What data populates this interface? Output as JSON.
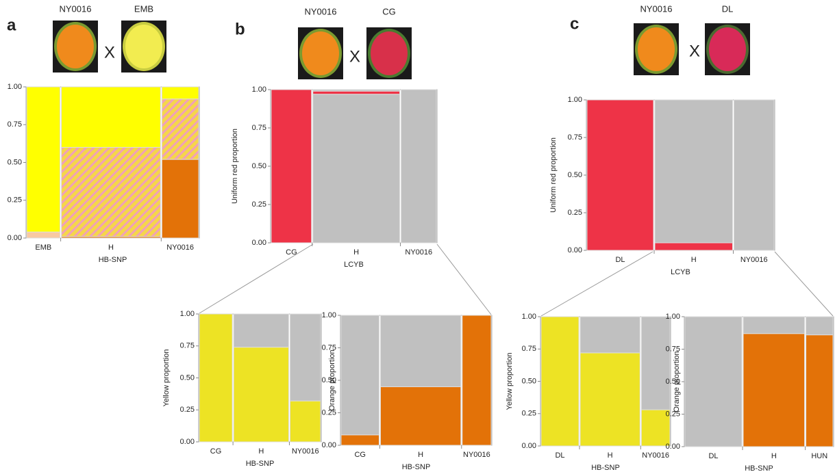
{
  "panels": [
    {
      "letter": "a",
      "parents": [
        "NY0016",
        "EMB"
      ],
      "cross": "X"
    },
    {
      "letter": "b",
      "parents": [
        "NY0016",
        "CG"
      ],
      "cross": "X"
    },
    {
      "letter": "c",
      "parents": [
        "NY0016",
        "DL"
      ],
      "cross": "X"
    }
  ],
  "chart_data": [
    {
      "type": "mosaic",
      "xlabel": "HB-SNP",
      "categories": [
        "EMB",
        "H",
        "NY0016"
      ],
      "widths": [
        0.2,
        0.58,
        0.22
      ],
      "series": [
        {
          "color": "#f8c9a2",
          "values": [
            0.04,
            null,
            null
          ]
        },
        {
          "color": "#e37208",
          "values": [
            null,
            0.01,
            0.52
          ]
        },
        {
          "color": "#f5d64a",
          "hatch": "#f0a0b8",
          "values": [
            null,
            0.59,
            0.4
          ]
        },
        {
          "color": "#ffff00",
          "values": [
            0.96,
            0.4,
            0.08
          ]
        }
      ],
      "ylim": [
        0,
        1
      ],
      "yticks": [
        {
          "value": 0,
          "label": "0.00"
        },
        {
          "value": 0.25,
          "label": "0.25"
        },
        {
          "value": 0.5,
          "label": "0.50"
        },
        {
          "value": 0.75,
          "label": "0.75"
        },
        {
          "value": 1,
          "label": "1.00"
        }
      ]
    },
    {
      "type": "mosaic",
      "xlabel": "LCYB",
      "ylabel": "Uniform red proportion",
      "categories": [
        "CG",
        "H",
        "NY0016"
      ],
      "widths": [
        0.25,
        0.53,
        0.22
      ],
      "series": [
        {
          "color": "#ee3347",
          "values": [
            1,
            null,
            null
          ]
        },
        {
          "color": "#c0c0c0",
          "values": [
            null,
            0.97,
            1
          ]
        },
        {
          "color": "#ee3347",
          "values": [
            null,
            0.02,
            null
          ]
        },
        {
          "color": "#c0c0c0",
          "values": [
            null,
            0.01,
            null
          ]
        }
      ],
      "ylim": [
        0,
        1
      ],
      "yticks": [
        {
          "value": 0,
          "label": "0.00"
        },
        {
          "value": 0.25,
          "label": "0.25"
        },
        {
          "value": 0.5,
          "label": "0.50"
        },
        {
          "value": 0.75,
          "label": "0.75"
        },
        {
          "value": 1,
          "label": "1.00"
        }
      ]
    },
    {
      "type": "mosaic",
      "xlabel": "HB-SNP",
      "ylabel": "Yellow proportion",
      "categories": [
        "CG",
        "H",
        "NY0016"
      ],
      "widths": [
        0.28,
        0.46,
        0.26
      ],
      "series": [
        {
          "color": "#ede324",
          "values": [
            1,
            0.74,
            0.32
          ]
        },
        {
          "color": "#c0c0c0",
          "values": [
            null,
            0.26,
            0.68
          ]
        }
      ],
      "ylim": [
        0,
        1
      ],
      "yticks": [
        {
          "value": 0,
          "label": "0.00"
        },
        {
          "value": 0.25,
          "label": "0.25"
        },
        {
          "value": 0.5,
          "label": "0.50"
        },
        {
          "value": 0.75,
          "label": "0.75"
        },
        {
          "value": 1,
          "label": "1.00"
        }
      ]
    },
    {
      "type": "mosaic",
      "xlabel": "HB-SNP",
      "ylabel": "Orange proportion",
      "categories": [
        "CG",
        "H",
        "NY0016"
      ],
      "widths": [
        0.26,
        0.54,
        0.2
      ],
      "series": [
        {
          "color": "#e37208",
          "values": [
            0.08,
            0.45,
            1
          ]
        },
        {
          "color": "#c0c0c0",
          "values": [
            0.92,
            0.55,
            null
          ]
        }
      ],
      "ylim": [
        0,
        1
      ],
      "yticks": [
        {
          "value": 0,
          "label": "0.00"
        },
        {
          "value": 0.25,
          "label": "0.25"
        },
        {
          "value": 0.5,
          "label": "0.50"
        },
        {
          "value": 0.75,
          "label": "0.75"
        },
        {
          "value": 1,
          "label": "1.00"
        }
      ]
    },
    {
      "type": "mosaic",
      "xlabel": "LCYB",
      "ylabel": "Uniform red proportion",
      "categories": [
        "DL",
        "H",
        "NY0016"
      ],
      "widths": [
        0.36,
        0.42,
        0.22
      ],
      "series": [
        {
          "color": "#ee3347",
          "values": [
            1,
            0.05,
            null
          ]
        },
        {
          "color": "#c0c0c0",
          "values": [
            null,
            0.95,
            1
          ]
        }
      ],
      "ylim": [
        0,
        1
      ],
      "yticks": [
        {
          "value": 0,
          "label": "0.00"
        },
        {
          "value": 0.25,
          "label": "0.25"
        },
        {
          "value": 0.5,
          "label": "0.50"
        },
        {
          "value": 0.75,
          "label": "0.75"
        },
        {
          "value": 1,
          "label": "1.00"
        }
      ]
    },
    {
      "type": "mosaic",
      "xlabel": "HB-SNP",
      "ylabel": "Yellow proportion",
      "categories": [
        "DL",
        "H",
        "NY0016"
      ],
      "widths": [
        0.3,
        0.47,
        0.23
      ],
      "series": [
        {
          "color": "#ede324",
          "values": [
            1,
            0.72,
            0.28
          ]
        },
        {
          "color": "#c0c0c0",
          "values": [
            null,
            0.28,
            0.72
          ]
        }
      ],
      "ylim": [
        0,
        1
      ],
      "yticks": [
        {
          "value": 0,
          "label": "0.00"
        },
        {
          "value": 0.25,
          "label": "0.25"
        },
        {
          "value": 0.5,
          "label": "0.50"
        },
        {
          "value": 0.75,
          "label": "0.75"
        },
        {
          "value": 1,
          "label": "1.00"
        }
      ]
    },
    {
      "type": "mosaic",
      "xlabel": "HB-SNP",
      "ylabel": "Orange proportion",
      "categories": [
        "DL",
        "H",
        "HUN"
      ],
      "widths": [
        0.39,
        0.42,
        0.19
      ],
      "series": [
        {
          "color": "#e37208",
          "values": [
            null,
            0.87,
            0.86
          ]
        },
        {
          "color": "#c0c0c0",
          "values": [
            1,
            0.13,
            0.14
          ]
        }
      ],
      "ylim": [
        0,
        1
      ],
      "yticks": [
        {
          "value": 0,
          "label": "0.00"
        },
        {
          "value": 0.25,
          "label": "0.25"
        },
        {
          "value": 0.5,
          "label": "0.50"
        },
        {
          "value": 0.75,
          "label": "0.75"
        },
        {
          "value": 1,
          "label": "1.00"
        }
      ]
    }
  ]
}
